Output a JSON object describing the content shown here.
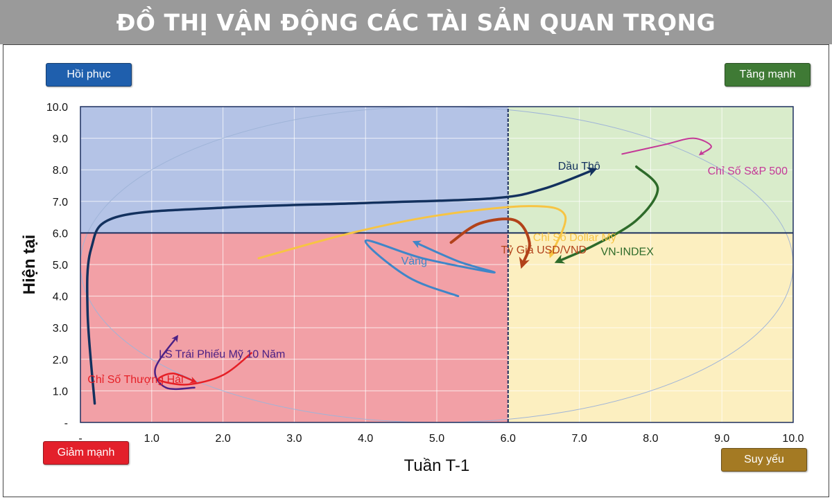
{
  "title": "ĐỒ THỊ VẬN ĐỘNG CÁC TÀI SẢN QUAN TRỌNG",
  "quadrant_labels": {
    "top_left": "Hồi phục",
    "top_right": "Tăng mạnh",
    "bottom_left": "Giảm mạnh",
    "bottom_right": "Suy yếu"
  },
  "colors": {
    "top_left_fill": "#b4c3e6",
    "top_right_fill": "#d9eccb",
    "bottom_left_fill": "#f2a0a6",
    "bottom_right_fill": "#fcefc0",
    "top_left_button": "#1f5fad",
    "top_right_button": "#3f7a35",
    "bottom_left_button": "#e3202b",
    "bottom_right_button": "#a47a23"
  },
  "chart_data": {
    "type": "line",
    "title": "ĐỒ THỊ VẬN ĐỘNG CÁC TÀI SẢN QUAN TRỌNG",
    "xlabel": "Tuần T-1",
    "ylabel": "Hiện tại",
    "xlim": [
      0,
      10
    ],
    "ylim": [
      0,
      10
    ],
    "x_ticks": [
      "-",
      "1.0",
      "2.0",
      "3.0",
      "4.0",
      "5.0",
      "6.0",
      "7.0",
      "8.0",
      "9.0",
      "10.0"
    ],
    "y_ticks": [
      "-",
      "1.0",
      "2.0",
      "3.0",
      "4.0",
      "5.0",
      "6.0",
      "7.0",
      "8.0",
      "9.0",
      "10.0"
    ],
    "grid": true,
    "divider": {
      "x": 6.0,
      "y": 6.0
    },
    "series": [
      {
        "name": "Dầu Thô",
        "color": "#13315e",
        "width": 3.5,
        "label_pos": [
          6.7,
          8.0
        ],
        "points": [
          [
            0.2,
            0.6
          ],
          [
            0.1,
            3.5
          ],
          [
            0.15,
            5.5
          ],
          [
            0.5,
            6.5
          ],
          [
            2.0,
            6.8
          ],
          [
            4.0,
            6.95
          ],
          [
            5.8,
            7.1
          ],
          [
            6.5,
            7.4
          ],
          [
            7.2,
            8.0
          ]
        ]
      },
      {
        "name": "Chỉ Số S&P 500",
        "color": "#c43897",
        "width": 2,
        "label_pos": [
          8.8,
          7.85
        ],
        "points": [
          [
            7.6,
            8.5
          ],
          [
            8.2,
            8.8
          ],
          [
            8.6,
            9.0
          ],
          [
            8.85,
            8.75
          ],
          [
            8.7,
            8.5
          ]
        ]
      },
      {
        "name": "VN-INDEX",
        "color": "#2e6b2a",
        "width": 3.5,
        "label_pos": [
          7.3,
          5.3
        ],
        "points": [
          [
            7.8,
            8.1
          ],
          [
            8.1,
            7.4
          ],
          [
            7.8,
            6.4
          ],
          [
            7.2,
            5.6
          ],
          [
            6.7,
            5.1
          ]
        ]
      },
      {
        "name": "Chỉ Số Dollar Mỹ",
        "color": "#f7c443",
        "width": 3,
        "label_pos": [
          6.35,
          5.75
        ],
        "points": [
          [
            2.5,
            5.2
          ],
          [
            3.8,
            6.0
          ],
          [
            5.0,
            6.55
          ],
          [
            6.3,
            6.85
          ],
          [
            6.8,
            6.55
          ],
          [
            6.6,
            5.3
          ]
        ]
      },
      {
        "name": "Tỷ Giá USD/VND",
        "color": "#b2421a",
        "width": 4,
        "label_pos": [
          5.9,
          5.35
        ],
        "points": [
          [
            5.2,
            5.7
          ],
          [
            5.6,
            6.3
          ],
          [
            6.1,
            6.4
          ],
          [
            6.3,
            5.7
          ],
          [
            6.2,
            5.0
          ]
        ]
      },
      {
        "name": "Vàng",
        "color": "#3f86c8",
        "width": 3,
        "label_pos": [
          4.5,
          5.0
        ],
        "points": [
          [
            5.3,
            4.0
          ],
          [
            4.6,
            4.6
          ],
          [
            4.0,
            5.75
          ],
          [
            4.8,
            5.2
          ],
          [
            5.8,
            4.75
          ],
          [
            5.3,
            5.1
          ],
          [
            4.7,
            5.7
          ]
        ]
      },
      {
        "name": "LS Trái Phiếu Mỹ 10 Năm",
        "color": "#4b2185",
        "width": 2.5,
        "label_pos": [
          1.1,
          2.05
        ],
        "points": [
          [
            1.6,
            1.1
          ],
          [
            1.2,
            1.1
          ],
          [
            1.05,
            1.7
          ],
          [
            1.35,
            2.7
          ]
        ]
      },
      {
        "name": "Chỉ Số Thượng Hải",
        "color": "#e51f26",
        "width": 2.5,
        "label_pos": [
          0.1,
          1.25
        ],
        "points": [
          [
            2.4,
            2.2
          ],
          [
            2.0,
            1.5
          ],
          [
            1.5,
            1.2
          ],
          [
            1.1,
            1.35
          ],
          [
            1.3,
            1.55
          ],
          [
            1.6,
            1.3
          ]
        ]
      }
    ]
  }
}
